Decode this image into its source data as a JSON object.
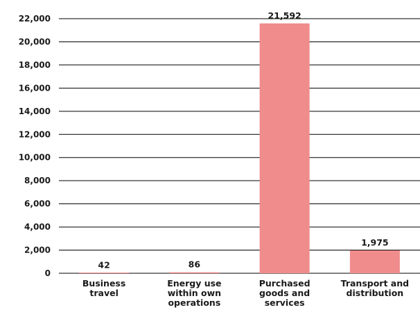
{
  "chart_data": {
    "type": "bar",
    "categories": [
      [
        "Business",
        "travel"
      ],
      [
        "Energy use",
        "within own",
        "operations"
      ],
      [
        "Purchased",
        "goods and",
        "services"
      ],
      [
        "Transport and",
        "distribution"
      ]
    ],
    "values": [
      42,
      86,
      21592,
      1975
    ],
    "data_labels": [
      "42",
      "86",
      "21,592",
      "1,975"
    ],
    "y_ticks": [
      "0",
      "2,000",
      "4,000",
      "6,000",
      "8,000",
      "10,000",
      "12,000",
      "14,000",
      "16,000",
      "18,000",
      "20,000",
      "22,000"
    ],
    "ylim": [
      0,
      22000
    ],
    "grid": true,
    "title": "",
    "xlabel": "",
    "ylabel": "",
    "colors": {
      "bar": "#f08c8c",
      "grid": "#000000",
      "text": "#1a1a1a"
    }
  }
}
